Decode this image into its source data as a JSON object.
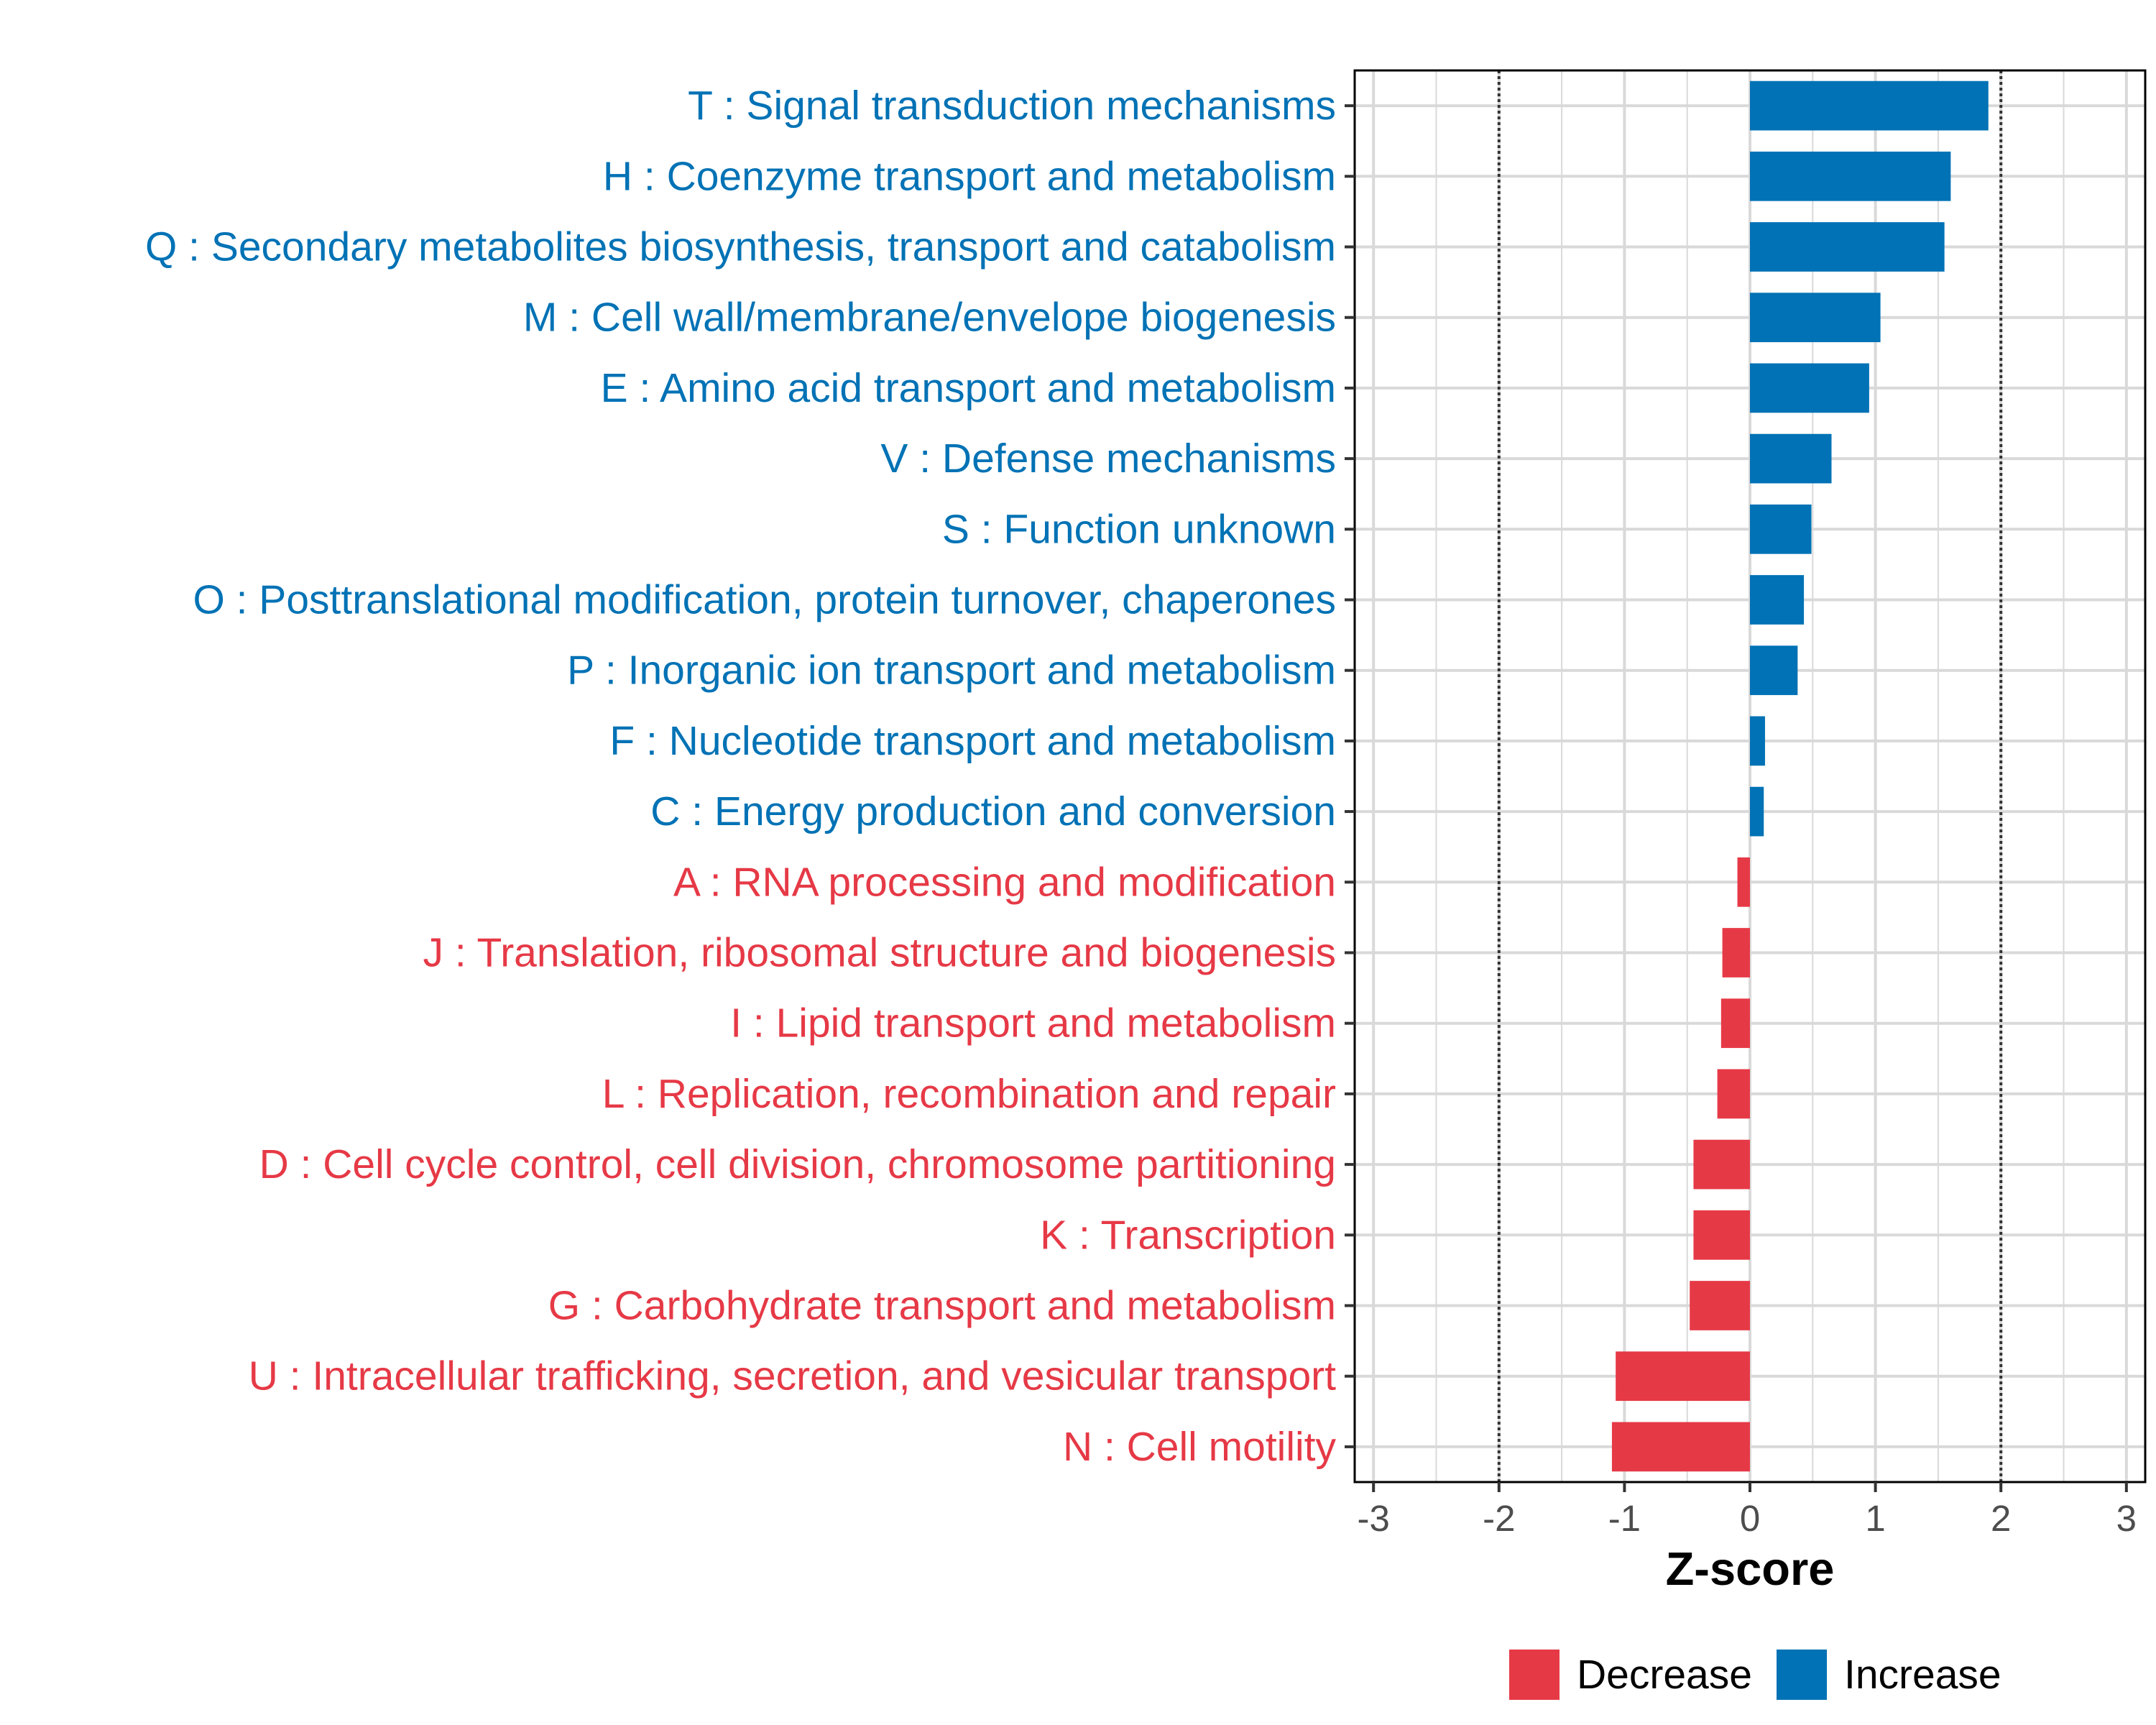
{
  "chart_data": {
    "type": "bar",
    "orientation": "horizontal",
    "title": "",
    "xlabel": "Z-score",
    "ylabel": "",
    "xlim": [
      -3.15,
      3.15
    ],
    "xticks": [
      -3,
      -2,
      -1,
      0,
      1,
      2,
      3
    ],
    "xtick_labels": [
      "-3",
      "-2",
      "-1",
      "0",
      "1",
      "2",
      "3"
    ],
    "reference_lines": [
      -2,
      2
    ],
    "grid": true,
    "legend_position": "bottom",
    "categories": [
      "T : Signal transduction mechanisms",
      "H : Coenzyme transport and metabolism",
      "Q : Secondary metabolites biosynthesis, transport and catabolism",
      "M : Cell wall/membrane/envelope biogenesis",
      "E : Amino acid transport and metabolism",
      "V : Defense mechanisms",
      "S : Function unknown",
      "O : Posttranslational modification, protein turnover, chaperones",
      "P : Inorganic ion transport and metabolism",
      "F : Nucleotide transport and metabolism",
      "C : Energy production and conversion",
      "A : RNA processing and modification",
      "J : Translation, ribosomal structure and biogenesis",
      "I : Lipid transport and metabolism",
      "L : Replication, recombination and repair",
      "D : Cell cycle control, cell division, chromosome partitioning",
      "K : Transcription",
      "G : Carbohydrate transport and metabolism",
      "U : Intracellular trafficking, secretion, and vesicular transport",
      "N : Cell motility"
    ],
    "values": [
      1.9,
      1.6,
      1.55,
      1.04,
      0.95,
      0.65,
      0.49,
      0.43,
      0.38,
      0.12,
      0.11,
      -0.1,
      -0.22,
      -0.23,
      -0.26,
      -0.45,
      -0.45,
      -0.48,
      -1.07,
      -1.1
    ],
    "groups": [
      "Increase",
      "Increase",
      "Increase",
      "Increase",
      "Increase",
      "Increase",
      "Increase",
      "Increase",
      "Increase",
      "Increase",
      "Increase",
      "Decrease",
      "Decrease",
      "Decrease",
      "Decrease",
      "Decrease",
      "Decrease",
      "Decrease",
      "Decrease",
      "Decrease"
    ],
    "legend": [
      {
        "name": "Decrease",
        "color": "#e63946"
      },
      {
        "name": "Increase",
        "color": "#0072b5"
      }
    ]
  },
  "colors": {
    "increase": "#0072b5",
    "decrease": "#e63946",
    "grid": "#d9d9d9",
    "axis": "#000000",
    "ref_line": "#333333"
  }
}
